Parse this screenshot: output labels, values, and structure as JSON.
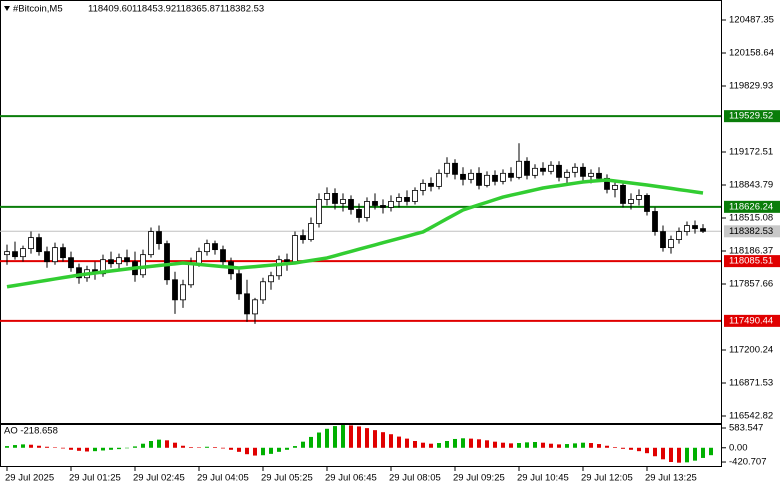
{
  "chart_data": {
    "type": "candlestick",
    "title": "#Bitcoin,M5",
    "header_values": [
      "118409.60",
      "118453.92",
      "118365.87",
      "118382.53"
    ],
    "categories": [
      "29 Jul 2025",
      null,
      null,
      null,
      null,
      null,
      null,
      null,
      "29 Jul 01:25",
      null,
      null,
      null,
      null,
      null,
      null,
      null,
      "29 Jul 02:45",
      null,
      null,
      null,
      null,
      null,
      null,
      null,
      "29 Jul 04:05",
      null,
      null,
      null,
      null,
      null,
      null,
      null,
      "29 Jul 05:25",
      null,
      null,
      null,
      null,
      null,
      null,
      null,
      "29 Jul 06:45",
      null,
      null,
      null,
      null,
      null,
      null,
      null,
      "29 Jul 08:05",
      null,
      null,
      null,
      null,
      null,
      null,
      null,
      "29 Jul 09:25",
      null,
      null,
      null,
      null,
      null,
      null,
      null,
      "29 Jul 10:45",
      null,
      null,
      null,
      null,
      null,
      null,
      null,
      "29 Jul 12:05",
      null,
      null,
      null,
      null,
      null,
      null,
      null,
      "29 Jul 13:25",
      null,
      null,
      null,
      null,
      null,
      null,
      null
    ],
    "open": [
      118150,
      118180,
      118130,
      118210,
      118320,
      118180,
      118080,
      118220,
      118120,
      118020,
      117920,
      118000,
      117960,
      118100,
      118060,
      118120,
      118080,
      117950,
      118150,
      118380,
      118260,
      117900,
      117700,
      117850,
      118060,
      118180,
      118260,
      118200,
      118080,
      117960,
      117760,
      117560,
      117700,
      117880,
      117940,
      118100,
      118080,
      118340,
      118300,
      118460,
      118700,
      118760,
      118660,
      118700,
      118600,
      118520,
      118680,
      118640,
      118620,
      118680,
      118720,
      118680,
      118790,
      118860,
      118830,
      118960,
      119060,
      118950,
      118900,
      118960,
      118840,
      118940,
      118880,
      118960,
      118920,
      119080,
      118940,
      119010,
      118980,
      119040,
      118920,
      118970,
      119020,
      118930,
      118960,
      118910,
      118800,
      118840,
      118660,
      118700,
      118740,
      118580,
      118380,
      118220,
      118300,
      118380,
      118440,
      118409.6
    ],
    "high": [
      118250,
      118280,
      118240,
      118380,
      118360,
      118230,
      118270,
      118260,
      118180,
      118060,
      118040,
      118080,
      118150,
      118180,
      118160,
      118200,
      118180,
      118200,
      118420,
      118440,
      118290,
      117980,
      117900,
      118120,
      118220,
      118300,
      118290,
      118240,
      118120,
      118000,
      117900,
      117720,
      117920,
      117980,
      118140,
      118160,
      118380,
      118400,
      118520,
      118760,
      118820,
      118810,
      118760,
      118740,
      118660,
      118720,
      118760,
      118700,
      118740,
      118760,
      118790,
      118820,
      118900,
      118920,
      119000,
      119120,
      119100,
      119020,
      119000,
      119020,
      118980,
      118990,
      119000,
      119020,
      119260,
      119120,
      119050,
      119070,
      119080,
      119080,
      119000,
      119060,
      119060,
      119000,
      119020,
      118950,
      118880,
      118860,
      118760,
      118800,
      118760,
      118620,
      118440,
      118340,
      118420,
      118480,
      118490,
      118453.92
    ],
    "low": [
      118050,
      118100,
      118080,
      118160,
      118140,
      118020,
      118050,
      118080,
      117980,
      117860,
      117880,
      117900,
      117930,
      118020,
      118000,
      118040,
      117880,
      117920,
      118120,
      118200,
      117850,
      117560,
      117620,
      117820,
      118030,
      118140,
      118150,
      118040,
      117900,
      117700,
      117480,
      117460,
      117660,
      117800,
      117900,
      117990,
      118060,
      118260,
      118280,
      118420,
      118640,
      118600,
      118580,
      118550,
      118470,
      118480,
      118600,
      118560,
      118580,
      118620,
      118640,
      118650,
      118740,
      118780,
      118800,
      118920,
      118900,
      118840,
      118860,
      118800,
      118820,
      118840,
      118850,
      118880,
      118900,
      118900,
      118910,
      118940,
      118950,
      118880,
      118860,
      118920,
      118880,
      118860,
      118880,
      118760,
      118720,
      118620,
      118600,
      118640,
      118540,
      118340,
      118180,
      118160,
      118260,
      118340,
      118360,
      118365.87
    ],
    "close": [
      118180,
      118130,
      118210,
      118320,
      118180,
      118080,
      118220,
      118120,
      118020,
      117920,
      118000,
      117960,
      118100,
      118060,
      118120,
      118080,
      117950,
      118150,
      118380,
      118260,
      117900,
      117700,
      117850,
      118060,
      118180,
      118260,
      118200,
      118080,
      117960,
      117760,
      117560,
      117700,
      117880,
      117940,
      118100,
      118080,
      118340,
      118300,
      118460,
      118700,
      118760,
      118660,
      118700,
      118600,
      118520,
      118680,
      118640,
      118620,
      118680,
      118720,
      118680,
      118790,
      118860,
      118830,
      118960,
      119060,
      118950,
      118900,
      118960,
      118840,
      118940,
      118880,
      118960,
      118920,
      119080,
      118940,
      119010,
      118980,
      119040,
      118920,
      118970,
      119020,
      118930,
      118960,
      118910,
      118800,
      118840,
      118660,
      118700,
      118740,
      118580,
      118380,
      118220,
      118300,
      118380,
      118440,
      118410,
      118382.53
    ],
    "up_color": "#ffffff",
    "down_color": "#000000",
    "ma": {
      "color": "#32cd32",
      "values": [
        117830,
        117843,
        117856,
        117869,
        117882,
        117895,
        117908,
        117921,
        117934,
        117947,
        117957,
        117967,
        117977,
        117987,
        117997,
        118007,
        118017,
        118025,
        118033,
        118042,
        118050,
        118058,
        118067,
        118060,
        118053,
        118045,
        118038,
        118031,
        118024,
        118017,
        118024,
        118031,
        118038,
        118045,
        118052,
        118060,
        118067,
        118080,
        118092,
        118105,
        118117,
        118139,
        118161,
        118182,
        118204,
        118226,
        118247,
        118269,
        118290,
        118312,
        118333,
        118355,
        118376,
        118420,
        118464,
        118508,
        118551,
        118595,
        118621,
        118647,
        118672,
        118698,
        118724,
        118742,
        118760,
        118778,
        118796,
        118814,
        118826,
        118838,
        118850,
        118862,
        118874,
        118881,
        118887,
        118894,
        118884,
        118874,
        118864,
        118854,
        118844,
        118833,
        118821,
        118810,
        118798,
        118787,
        118775,
        118764
      ]
    },
    "levels": [
      {
        "value": 119529.52,
        "color": "#0a7d0a"
      },
      {
        "value": 118626.24,
        "color": "#0a7d0a"
      },
      {
        "value": 118085.51,
        "color": "#e00000"
      },
      {
        "value": 117490.44,
        "color": "#e00000"
      }
    ],
    "current_price": 118382.53,
    "ylim": [
      116463.1,
      120686.6
    ],
    "yticks": [
      120487.35,
      120158.64,
      119829.93,
      119172.51,
      118843.79,
      118515.08,
      118186.37,
      117857.66,
      117200.24,
      116871.53,
      116542.82
    ],
    "ao": {
      "label": "AO -218.658",
      "up_color": "#00b000",
      "down_color": "#e00000",
      "values": [
        50,
        80,
        100,
        90,
        60,
        30,
        10,
        -20,
        -60,
        -90,
        -110,
        -100,
        -80,
        -60,
        -40,
        -10,
        40,
        120,
        200,
        240,
        220,
        150,
        60,
        20,
        10,
        30,
        20,
        -20,
        -60,
        -120,
        -190,
        -230,
        -220,
        -180,
        -120,
        -60,
        50,
        180,
        320,
        450,
        560,
        640,
        670,
        660,
        630,
        580,
        520,
        460,
        400,
        330,
        270,
        200,
        150,
        120,
        140,
        200,
        260,
        280,
        270,
        250,
        220,
        180,
        150,
        130,
        140,
        160,
        170,
        150,
        120,
        100,
        110,
        130,
        150,
        140,
        110,
        60,
        20,
        -30,
        -60,
        -100,
        -160,
        -250,
        -340,
        -420,
        -440,
        -430,
        -380,
        -300,
        -218.658
      ],
      "ylim": [
        -538,
        672
      ],
      "yticks": [
        583.547,
        {
          "value": 0,
          "label": "0.00"
        },
        -420.707
      ]
    }
  }
}
